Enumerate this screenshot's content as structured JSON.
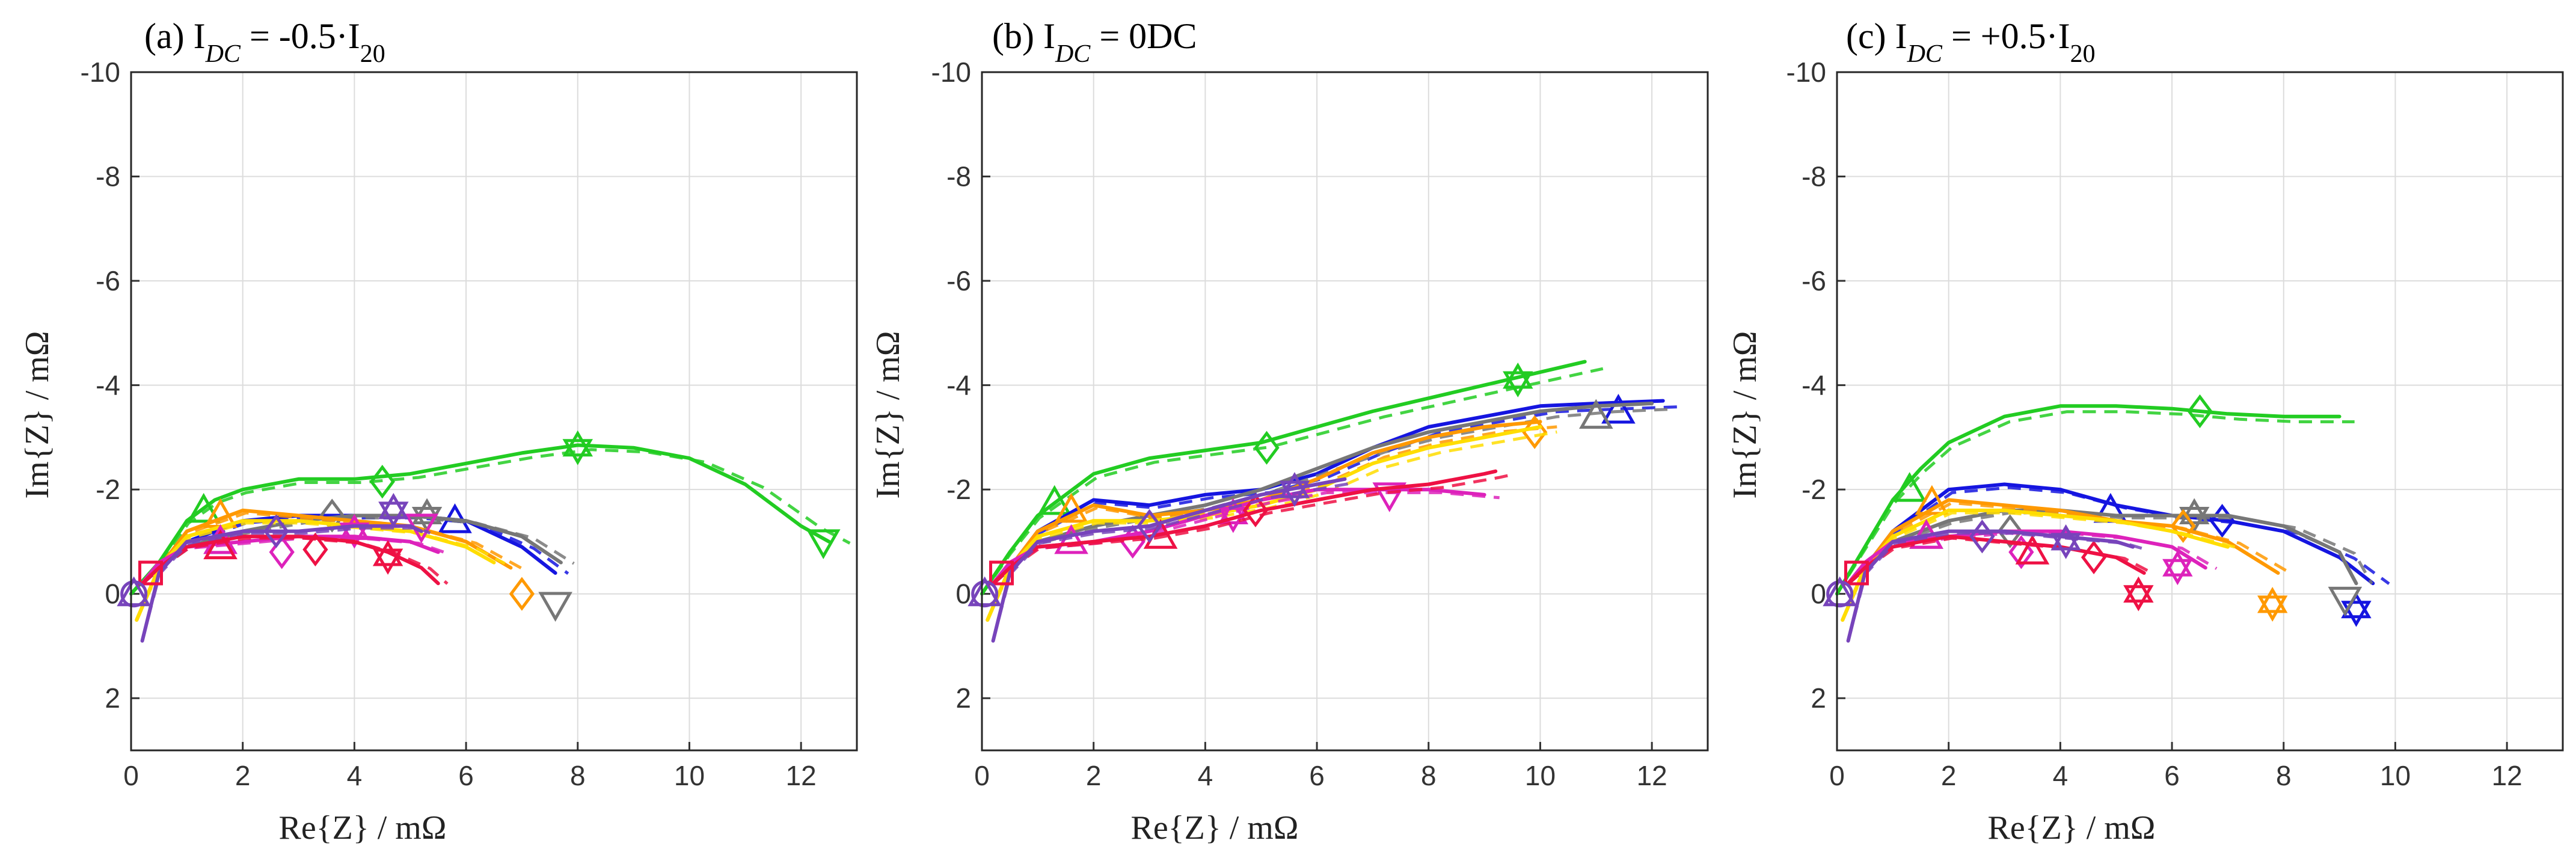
{
  "chart_data": [
    {
      "type": "line",
      "title": "(a) I_DC = -0.5·I20",
      "title_main": "(a) I",
      "title_sub": "DC",
      "title_rest": " = -0.5·I",
      "title_sub2": "20",
      "xlabel": "Re{Z} / mΩ",
      "ylabel": "Im{Z} / mΩ",
      "xlim": [
        0,
        13
      ],
      "ylim": [
        -10,
        3
      ],
      "xticks": [
        "0",
        "2",
        "4",
        "6",
        "8",
        "10",
        "12"
      ],
      "yticks": [
        "-10",
        "-8",
        "-6",
        "-4",
        "-2",
        "0",
        "2"
      ],
      "grid": true,
      "series": [
        {
          "name": "green",
          "color": "#22cc22",
          "x": [
            0,
            0.5,
            1,
            1.5,
            2,
            3,
            4,
            5,
            6,
            7,
            8,
            9,
            10,
            11,
            12,
            12.5
          ],
          "y": [
            0,
            -0.6,
            -1.4,
            -1.8,
            -2.0,
            -2.2,
            -2.2,
            -2.3,
            -2.5,
            -2.7,
            -2.85,
            -2.8,
            -2.6,
            -2.1,
            -1.3,
            -1.0
          ],
          "markers": [
            [
              1.3,
              -1.6
            ],
            [
              4.5,
              -2.15
            ],
            [
              8.0,
              -2.8
            ],
            [
              12.4,
              -1.0
            ]
          ]
        },
        {
          "name": "blue",
          "color": "#1515e0",
          "x": [
            0.2,
            0.5,
            1,
            2,
            3,
            4,
            5,
            6,
            7,
            7.6
          ],
          "y": [
            -0.2,
            -0.5,
            -1.0,
            -1.4,
            -1.5,
            -1.5,
            -1.5,
            -1.4,
            -0.9,
            -0.4
          ],
          "markers": [
            [
              5.8,
              -1.4
            ]
          ]
        },
        {
          "name": "gray",
          "color": "#777777",
          "x": [
            0.2,
            0.5,
            1,
            2,
            3,
            4,
            5,
            6,
            7,
            7.7
          ],
          "y": [
            -0.2,
            -0.5,
            -0.9,
            -1.2,
            -1.4,
            -1.5,
            -1.5,
            -1.4,
            -1.1,
            -0.6
          ],
          "markers": [
            [
              1.6,
              -1.0
            ],
            [
              3.6,
              -1.5
            ],
            [
              5.3,
              -1.5
            ],
            [
              7.6,
              0.2
            ]
          ]
        },
        {
          "name": "orange",
          "color": "#ff9900",
          "x": [
            0.1,
            0.5,
            1,
            2,
            3,
            4,
            5,
            6,
            6.8
          ],
          "y": [
            0.5,
            -0.5,
            -1.2,
            -1.6,
            -1.5,
            -1.4,
            -1.3,
            -1.0,
            -0.5
          ],
          "markers": [
            [
              1.6,
              -1.5
            ],
            [
              7.0,
              0.0
            ]
          ]
        },
        {
          "name": "yellow",
          "color": "#ffdd00",
          "x": [
            0.1,
            0.5,
            1,
            2,
            3,
            4,
            5,
            6,
            6.5
          ],
          "y": [
            0.5,
            -0.5,
            -1.1,
            -1.4,
            -1.4,
            -1.3,
            -1.2,
            -0.9,
            -0.6
          ],
          "markers": []
        },
        {
          "name": "magenta",
          "color": "#dd22bb",
          "x": [
            0.2,
            0.5,
            1,
            2,
            3,
            4,
            5,
            5.5
          ],
          "y": [
            -0.2,
            -0.6,
            -0.9,
            -1.0,
            -1.1,
            -1.1,
            -1.0,
            -0.8
          ],
          "markers": [
            [
              1.6,
              -1.0
            ],
            [
              2.7,
              -0.8
            ],
            [
              4.0,
              -1.2
            ],
            [
              5.2,
              -1.3
            ]
          ]
        },
        {
          "name": "red",
          "color": "#ee1144",
          "x": [
            0.2,
            0.5,
            1,
            2,
            3,
            4,
            4.6,
            5.2,
            5.5
          ],
          "y": [
            -0.2,
            -0.5,
            -0.9,
            -1.1,
            -1.1,
            -1.0,
            -0.8,
            -0.5,
            -0.2
          ],
          "markers": [
            [
              1.6,
              -0.9
            ],
            [
              3.3,
              -0.85
            ],
            [
              4.6,
              -0.7
            ]
          ]
        },
        {
          "name": "purple",
          "color": "#7744bb",
          "x": [
            0.2,
            0.5,
            1,
            2,
            3,
            4,
            5,
            5.2
          ],
          "y": [
            0.9,
            -0.4,
            -1.0,
            -1.2,
            -1.2,
            -1.3,
            -1.3,
            -1.2
          ],
          "markers": [
            [
              0.05,
              0.0
            ],
            [
              2.6,
              -1.2
            ],
            [
              4.7,
              -1.6
            ]
          ]
        }
      ]
    },
    {
      "type": "line",
      "title": "(b) I_DC = 0DC",
      "title_main": "(b) I",
      "title_sub": "DC",
      "title_rest": " = 0DC",
      "title_sub2": "",
      "xlabel": "Re{Z} / mΩ",
      "ylabel": "Im{Z} / mΩ",
      "xlim": [
        0,
        13
      ],
      "ylim": [
        -10,
        3
      ],
      "xticks": [
        "0",
        "2",
        "4",
        "6",
        "8",
        "10",
        "12"
      ],
      "yticks": [
        "-10",
        "-8",
        "-6",
        "-4",
        "-2",
        "0",
        "2"
      ],
      "grid": true,
      "series": [
        {
          "name": "green",
          "color": "#22cc22",
          "x": [
            0,
            0.5,
            1,
            1.5,
            2,
            3,
            4,
            5,
            6,
            7,
            8,
            9,
            10,
            10.8
          ],
          "y": [
            0,
            -0.8,
            -1.5,
            -1.9,
            -2.3,
            -2.6,
            -2.75,
            -2.9,
            -3.2,
            -3.5,
            -3.75,
            -4.0,
            -4.25,
            -4.45
          ],
          "markers": [
            [
              1.3,
              -1.75
            ],
            [
              5.1,
              -2.8
            ],
            [
              9.6,
              -4.1
            ]
          ]
        },
        {
          "name": "blue",
          "color": "#1515e0",
          "x": [
            0.2,
            0.5,
            1,
            2,
            3,
            4,
            5,
            6,
            7,
            8,
            9,
            10,
            11,
            12.2
          ],
          "y": [
            -0.2,
            -0.5,
            -1.2,
            -1.8,
            -1.7,
            -1.9,
            -2.0,
            -2.3,
            -2.8,
            -3.2,
            -3.4,
            -3.6,
            -3.65,
            -3.7
          ],
          "markers": [
            [
              11.4,
              -3.5
            ]
          ]
        },
        {
          "name": "gray",
          "color": "#777777",
          "x": [
            0.2,
            0.5,
            1,
            2,
            3,
            4,
            5,
            6,
            7,
            8,
            9,
            10,
            11,
            12
          ],
          "y": [
            -0.2,
            -0.5,
            -1.0,
            -1.3,
            -1.5,
            -1.7,
            -2.0,
            -2.4,
            -2.8,
            -3.1,
            -3.3,
            -3.5,
            -3.6,
            -3.65
          ],
          "markers": [
            [
              11.0,
              -3.4
            ]
          ]
        },
        {
          "name": "orange",
          "color": "#ff9900",
          "x": [
            0.1,
            0.5,
            1,
            2,
            3,
            4,
            5,
            6,
            7,
            8,
            9,
            10
          ],
          "y": [
            0.5,
            -0.5,
            -1.2,
            -1.7,
            -1.5,
            -1.6,
            -1.8,
            -2.2,
            -2.7,
            -3.0,
            -3.2,
            -3.3
          ],
          "markers": [
            [
              1.6,
              -1.6
            ],
            [
              9.9,
              -3.1
            ]
          ]
        },
        {
          "name": "yellow",
          "color": "#ffdd00",
          "x": [
            0.1,
            0.5,
            1,
            2,
            3,
            4,
            5,
            6,
            7,
            8,
            9,
            10
          ],
          "y": [
            0.5,
            -0.5,
            -1.1,
            -1.4,
            -1.4,
            -1.5,
            -1.7,
            -2.0,
            -2.5,
            -2.8,
            -3.0,
            -3.2
          ],
          "markers": []
        },
        {
          "name": "magenta",
          "color": "#dd22bb",
          "x": [
            0.2,
            0.5,
            1,
            2,
            3,
            4,
            5,
            6,
            7,
            8,
            9
          ],
          "y": [
            -0.2,
            -0.6,
            -0.9,
            -1.0,
            -1.2,
            -1.5,
            -1.8,
            -2.0,
            -2.0,
            -2.0,
            -1.9
          ],
          "markers": [
            [
              1.6,
              -1.0
            ],
            [
              2.7,
              -1.0
            ],
            [
              4.5,
              -1.5
            ],
            [
              7.3,
              -1.9
            ]
          ]
        },
        {
          "name": "red",
          "color": "#ee1144",
          "x": [
            0.2,
            0.5,
            1,
            2,
            3,
            4,
            5,
            6,
            7,
            8,
            9,
            9.2
          ],
          "y": [
            -0.2,
            -0.5,
            -0.9,
            -1.0,
            -1.1,
            -1.3,
            -1.6,
            -1.8,
            -2.0,
            -2.1,
            -2.3,
            -2.35
          ],
          "markers": [
            [
              3.2,
              -1.1
            ],
            [
              4.9,
              -1.6
            ]
          ]
        },
        {
          "name": "purple",
          "color": "#7744bb",
          "x": [
            0.2,
            0.5,
            1,
            2,
            3,
            4,
            5,
            6,
            6.5
          ],
          "y": [
            0.9,
            -0.4,
            -1.0,
            -1.2,
            -1.3,
            -1.6,
            -1.9,
            -2.1,
            -2.2
          ],
          "markers": [
            [
              0.05,
              0.0
            ],
            [
              3.0,
              -1.3
            ],
            [
              5.6,
              -2.0
            ]
          ]
        }
      ]
    },
    {
      "type": "line",
      "title": "(c) I_DC = +0.5·I20",
      "title_main": "(c) I",
      "title_sub": "DC",
      "title_rest": " = +0.5·I",
      "title_sub2": "20",
      "xlabel": "Re{Z} / mΩ",
      "ylabel": "Im{Z} / mΩ",
      "xlim": [
        0,
        13
      ],
      "ylim": [
        -10,
        3
      ],
      "xticks": [
        "0",
        "2",
        "4",
        "6",
        "8",
        "10",
        "12"
      ],
      "yticks": [
        "-10",
        "-8",
        "-6",
        "-4",
        "-2",
        "0",
        "2"
      ],
      "grid": true,
      "series": [
        {
          "name": "green",
          "color": "#22cc22",
          "x": [
            0,
            0.5,
            1,
            1.5,
            2,
            3,
            4,
            5,
            6,
            7,
            8,
            9
          ],
          "y": [
            0,
            -0.9,
            -1.8,
            -2.4,
            -2.9,
            -3.4,
            -3.6,
            -3.6,
            -3.55,
            -3.45,
            -3.4,
            -3.4
          ],
          "markers": [
            [
              1.3,
              -2.0
            ],
            [
              6.5,
              -3.5
            ]
          ]
        },
        {
          "name": "blue",
          "color": "#1515e0",
          "x": [
            0.2,
            0.5,
            1,
            2,
            3,
            4,
            5,
            6,
            7,
            8,
            9,
            9.6
          ],
          "y": [
            -0.2,
            -0.5,
            -1.2,
            -2.0,
            -2.1,
            -2.0,
            -1.7,
            -1.5,
            -1.4,
            -1.2,
            -0.7,
            -0.2
          ],
          "markers": [
            [
              4.9,
              -1.6
            ],
            [
              6.9,
              -1.4
            ],
            [
              9.3,
              0.3
            ]
          ]
        },
        {
          "name": "gray",
          "color": "#777777",
          "x": [
            0.2,
            0.5,
            1,
            2,
            3,
            4,
            5,
            6,
            7,
            8,
            9,
            9.3
          ],
          "y": [
            -0.2,
            -0.5,
            -1.0,
            -1.4,
            -1.6,
            -1.6,
            -1.5,
            -1.5,
            -1.5,
            -1.3,
            -0.8,
            -0.2
          ],
          "markers": [
            [
              1.6,
              -1.1
            ],
            [
              3.1,
              -1.2
            ],
            [
              6.4,
              -1.5
            ],
            [
              9.1,
              0.1
            ]
          ]
        },
        {
          "name": "orange",
          "color": "#ff9900",
          "x": [
            0.1,
            0.5,
            1,
            2,
            3,
            4,
            5,
            6,
            7,
            7.9
          ],
          "y": [
            0.5,
            -0.5,
            -1.2,
            -1.8,
            -1.7,
            -1.6,
            -1.4,
            -1.3,
            -1.0,
            -0.4
          ],
          "markers": [
            [
              1.7,
              -1.75
            ],
            [
              6.2,
              -1.3
            ],
            [
              7.8,
              0.2
            ]
          ]
        },
        {
          "name": "yellow",
          "color": "#ffdd00",
          "x": [
            0.1,
            0.5,
            1,
            2,
            3,
            4,
            5,
            6,
            7
          ],
          "y": [
            0.5,
            -0.5,
            -1.1,
            -1.6,
            -1.6,
            -1.5,
            -1.4,
            -1.2,
            -0.9
          ],
          "markers": []
        },
        {
          "name": "magenta",
          "color": "#dd22bb",
          "x": [
            0.2,
            0.5,
            1,
            2,
            3,
            4,
            5,
            6,
            6.6
          ],
          "y": [
            -0.2,
            -0.6,
            -1.0,
            -1.1,
            -1.2,
            -1.2,
            -1.1,
            -0.9,
            -0.5
          ],
          "markers": [
            [
              1.6,
              -1.1
            ],
            [
              3.3,
              -0.8
            ],
            [
              6.1,
              -0.5
            ]
          ]
        },
        {
          "name": "red",
          "color": "#ee1144",
          "x": [
            0.2,
            0.5,
            1,
            2,
            3,
            4,
            5,
            5.5
          ],
          "y": [
            -0.2,
            -0.5,
            -0.9,
            -1.1,
            -1.0,
            -0.9,
            -0.7,
            -0.4
          ],
          "markers": [
            [
              3.5,
              -0.8
            ],
            [
              4.6,
              -0.7
            ],
            [
              5.4,
              0.0
            ]
          ]
        },
        {
          "name": "purple",
          "color": "#7744bb",
          "x": [
            0.2,
            0.5,
            1,
            2,
            3,
            4,
            5,
            5.3
          ],
          "y": [
            0.9,
            -0.4,
            -1.0,
            -1.2,
            -1.2,
            -1.1,
            -1.0,
            -0.9
          ],
          "markers": [
            [
              0.05,
              0.0
            ],
            [
              2.6,
              -1.1
            ],
            [
              4.1,
              -1.0
            ]
          ]
        }
      ]
    }
  ]
}
